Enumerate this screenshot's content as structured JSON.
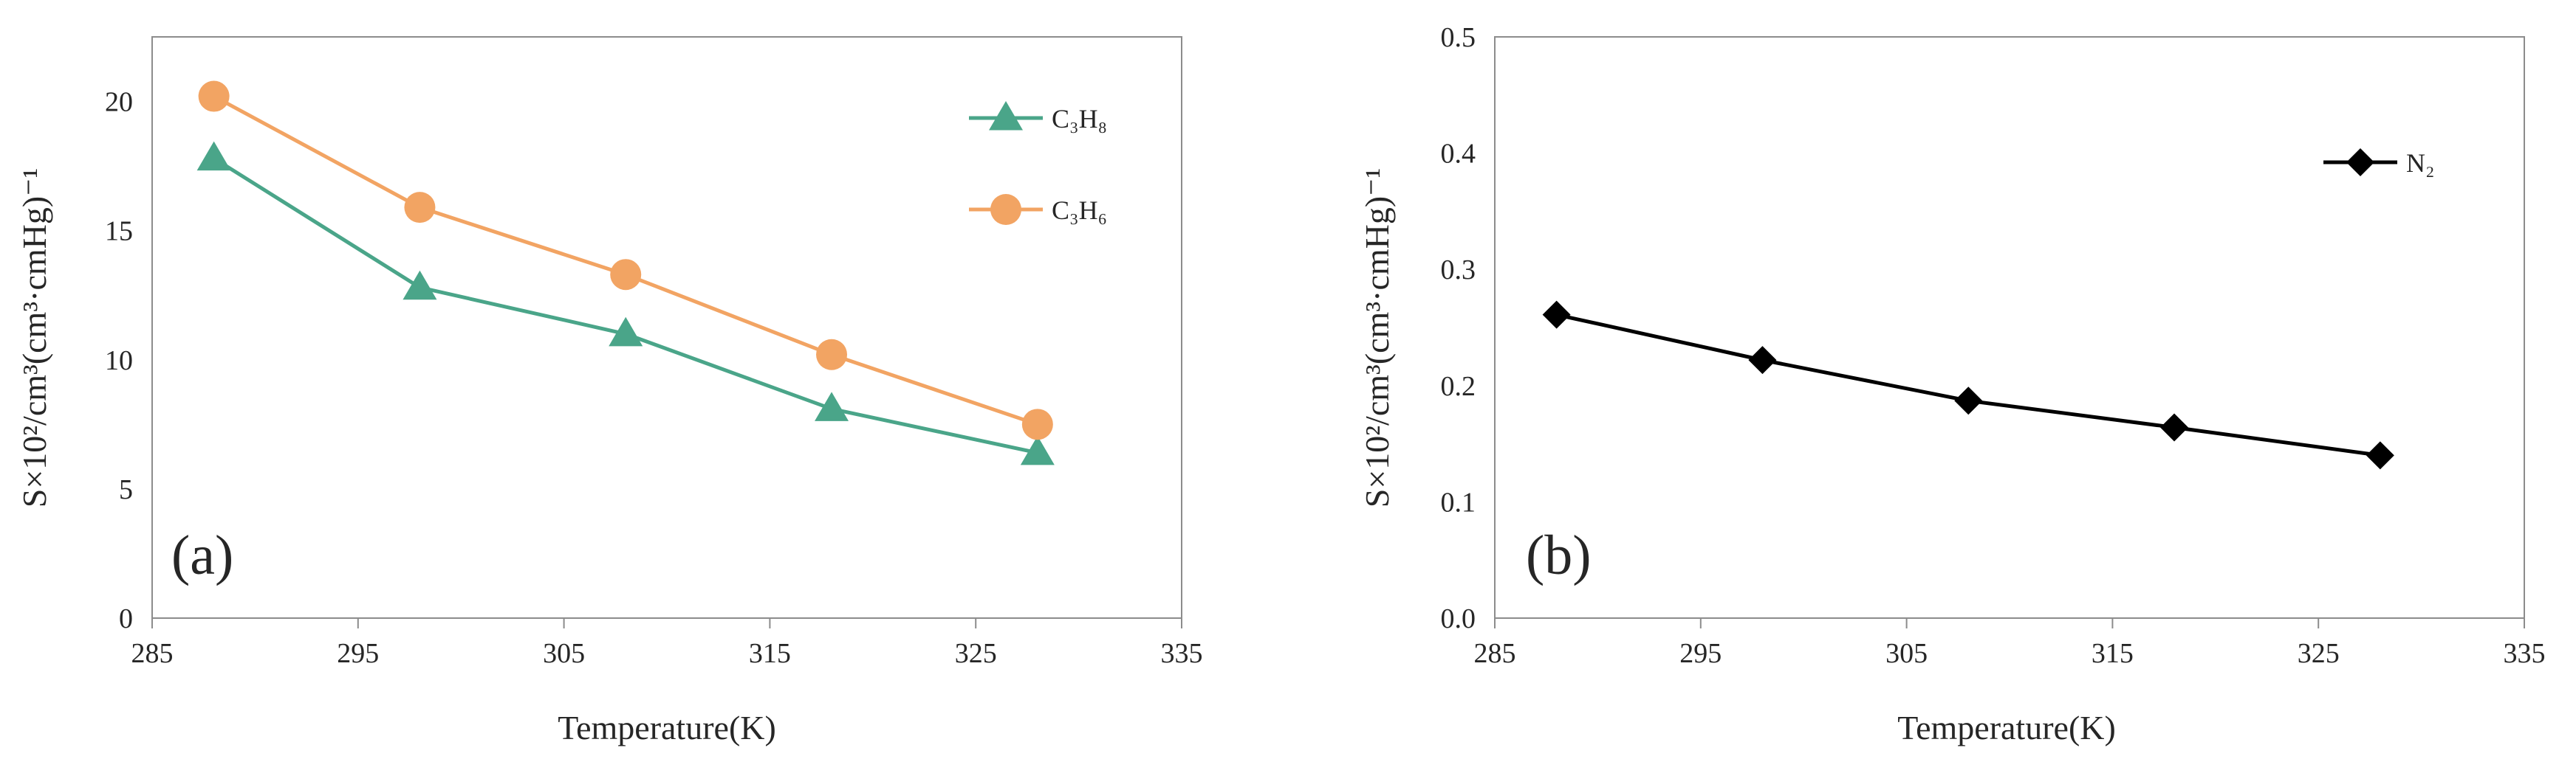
{
  "chart_data": [
    {
      "type": "line",
      "panel_label": "(a)",
      "xlabel": "Temperature(K)",
      "ylabel": "S×10²/cm³(cm³·cmHg)⁻¹",
      "xlim": [
        285,
        335
      ],
      "ylim": [
        0,
        22.5
      ],
      "xticks": [
        285,
        295,
        305,
        315,
        325,
        335
      ],
      "yticks": [
        0,
        5,
        10,
        15,
        20
      ],
      "x": [
        288,
        298,
        308,
        318,
        328
      ],
      "series": [
        {
          "name": "C3H8",
          "label": "C₃H₈",
          "marker": "triangle",
          "color": "#4AA589",
          "values": [
            17.8,
            12.8,
            11.0,
            8.1,
            6.4
          ]
        },
        {
          "name": "C3H6",
          "label": "C₃H₆",
          "marker": "circle",
          "color": "#F2A463",
          "values": [
            20.2,
            15.9,
            13.3,
            10.2,
            7.5
          ]
        }
      ],
      "legend_position": "top-right"
    },
    {
      "type": "line",
      "panel_label": "(b)",
      "xlabel": "Temperature(K)",
      "ylabel": "S×10²/cm³(cm³·cmHg)⁻¹",
      "xlim": [
        285,
        335
      ],
      "ylim": [
        0,
        0.5
      ],
      "xticks": [
        285,
        295,
        305,
        315,
        325,
        335
      ],
      "yticks": [
        0.0,
        0.1,
        0.2,
        0.3,
        0.4,
        0.5
      ],
      "x": [
        288,
        298,
        308,
        318,
        328
      ],
      "series": [
        {
          "name": "N2",
          "label": "N₂",
          "marker": "diamond",
          "color": "#000000",
          "values": [
            0.261,
            0.222,
            0.187,
            0.164,
            0.14
          ]
        }
      ],
      "legend_position": "top-right"
    }
  ]
}
